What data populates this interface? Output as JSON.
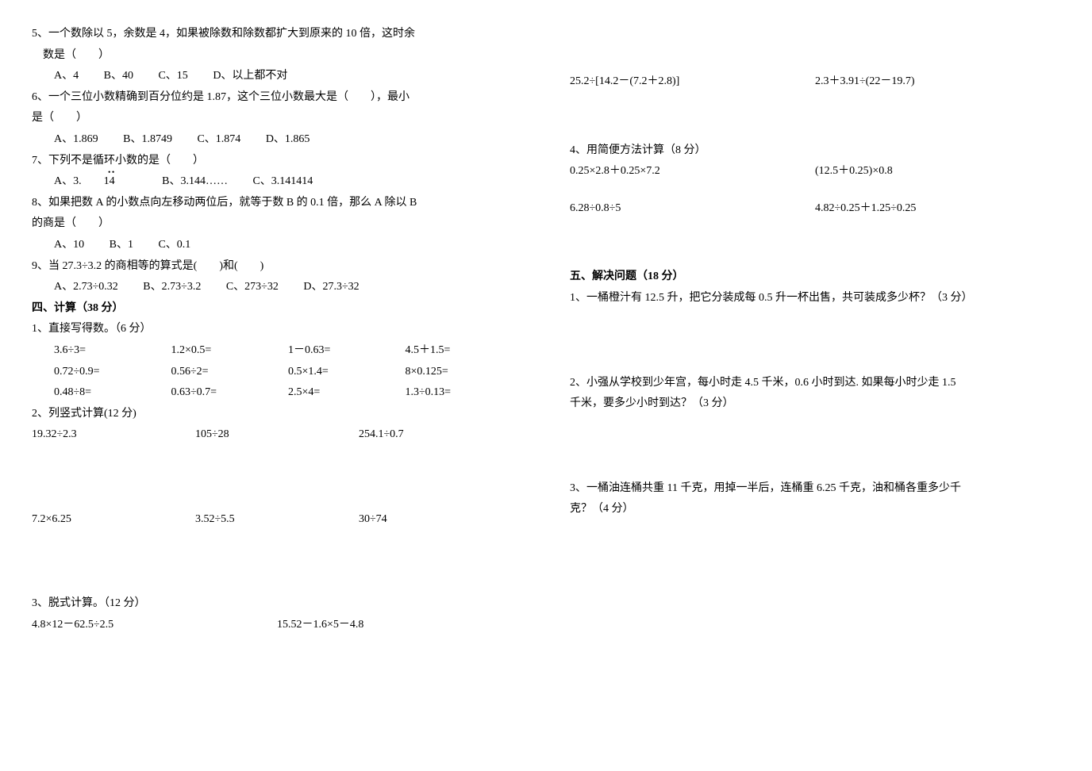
{
  "left": {
    "q5": {
      "stem1": "5、一个数除以 5，余数是 4，如果被除数和除数都扩大到原来的 10 倍，这时余",
      "stem2": "数是（　　）",
      "opts": [
        "A、4",
        "B、40",
        "C、15",
        "D、以上都不对"
      ]
    },
    "q6": {
      "stem1": "6、一个三位小数精确到百分位约是 1.87，这个三位小数最大是（　　），最小",
      "stem2": "是（　　）",
      "opts": [
        "A、1.869",
        "B、1.8749",
        "C、1.874",
        "D、1.865"
      ]
    },
    "q7": {
      "stem": "7、下列不是循环小数的是（　　）",
      "opts_a_pre": "A、3.",
      "opts_a_num": "14",
      "opts_b": "B、3.144……",
      "opts_c": "C、3.141414"
    },
    "q8": {
      "stem1": "8、如果把数 A 的小数点向左移动两位后，就等于数 B 的 0.1 倍，那么 A 除以 B",
      "stem2": "的商是（　　）",
      "opts": [
        "A、10",
        "B、1",
        "C、0.1"
      ]
    },
    "q9": {
      "stem": "9、当 27.3÷3.2 的商相等的算式是(　　)和(　　)",
      "opts": [
        "A、2.73÷0.32",
        "B、2.73÷3.2",
        "C、273÷32",
        "D、27.3÷32"
      ]
    },
    "sec4": "四、计算（38 分）",
    "p1": {
      "title": "1、直接写得数。（6 分）",
      "r1": [
        "3.6÷3=",
        "1.2×0.5=",
        "1－0.63=",
        "4.5＋1.5="
      ],
      "r2": [
        "0.72÷0.9=",
        "0.56÷2=",
        "0.5×1.4=",
        "8×0.125="
      ],
      "r3": [
        "0.48÷8=",
        "0.63÷0.7=",
        "2.5×4=",
        "1.3÷0.13="
      ]
    },
    "p2": {
      "title": "2、列竖式计算(12 分)",
      "r1": [
        "19.32÷2.3",
        "105÷28",
        "254.1÷0.7"
      ],
      "r2": [
        "7.2×6.25",
        "3.52÷5.5",
        "30÷74"
      ]
    },
    "p3": {
      "title": "3、脱式计算。（12 分）",
      "r1": [
        "4.8×12－62.5÷2.5",
        "15.52－1.6×5－4.8"
      ]
    }
  },
  "right": {
    "p3r2": [
      "25.2÷[14.2－(7.2＋2.8)]",
      "2.3＋3.91÷(22－19.7)"
    ],
    "p4": {
      "title": "4、用简便方法计算（8 分）",
      "r1": [
        "0.25×2.8＋0.25×7.2",
        "(12.5＋0.25)×0.8"
      ],
      "r2": [
        "6.28÷0.8÷5",
        "4.82÷0.25＋1.25÷0.25"
      ]
    },
    "sec5": "五、解决问题（18 分）",
    "w1": "1、一桶橙汁有 12.5 升，把它分装成每 0.5 升一杯出售，共可装成多少杯？（3 分）",
    "w2a": "2、小强从学校到少年宫，每小时走 4.5 千米，0.6 小时到达. 如果每小时少走 1.5",
    "w2b": "千米，要多少小时到达？（3 分）",
    "w3a": "3、一桶油连桶共重 11 千克，用掉一半后，连桶重 6.25 千克，油和桶各重多少千",
    "w3b": "克？（4 分）"
  }
}
